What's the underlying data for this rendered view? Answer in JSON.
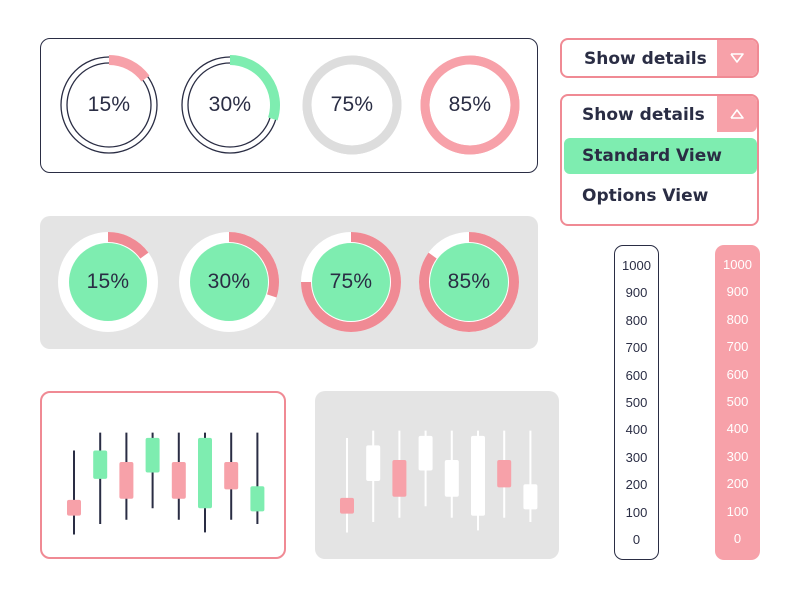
{
  "progress_rings_outline": {
    "items": [
      {
        "label": "15%",
        "value": 0.15,
        "track_color": "#2a2d44",
        "fill_color": "#f7a1a9",
        "style": "double-line"
      },
      {
        "label": "30%",
        "value": 0.3,
        "track_color": "#2a2d44",
        "fill_color": "#7eedb0",
        "style": "double-line"
      },
      {
        "label": "75%",
        "value": 0.75,
        "track_color": "#dddddd",
        "fill_color": "#dddddd",
        "style": "solid"
      },
      {
        "label": "85%",
        "value": 0.85,
        "track_color": "#f7a1a9",
        "fill_color": "#f7a1a9",
        "style": "solid"
      }
    ]
  },
  "progress_rings_filled": {
    "items": [
      {
        "label": "15%",
        "value": 0.15,
        "center_color": "#7eedb0",
        "track_color": "#ffffff",
        "fill_color": "#f08a94"
      },
      {
        "label": "30%",
        "value": 0.3,
        "center_color": "#7eedb0",
        "track_color": "#ffffff",
        "fill_color": "#f08a94"
      },
      {
        "label": "75%",
        "value": 0.75,
        "center_color": "#7eedb0",
        "track_color": "#ffffff",
        "fill_color": "#f08a94"
      },
      {
        "label": "85%",
        "value": 0.85,
        "center_color": "#7eedb0",
        "track_color": "#ffffff",
        "fill_color": "#f08a94"
      }
    ]
  },
  "dropdown_collapsed": {
    "label": "Show details",
    "icon": "chevron-down-icon"
  },
  "dropdown_expanded": {
    "label": "Show details",
    "icon": "chevron-up-icon",
    "options": [
      {
        "label": "Standard View",
        "selected": true
      },
      {
        "label": "Options View",
        "selected": false
      }
    ]
  },
  "candlestick_colored": {
    "line_color": "#2a2d44",
    "candles": [
      {
        "open": 28,
        "close": 43,
        "low": 10,
        "high": 90,
        "color": "#f7a1a9"
      },
      {
        "open": 63,
        "close": 90,
        "low": 20,
        "high": 107,
        "color": "#7eedb0"
      },
      {
        "open": 79,
        "close": 44,
        "low": 24,
        "high": 107,
        "color": "#f7a1a9"
      },
      {
        "open": 69,
        "close": 102,
        "low": 35,
        "high": 107,
        "color": "#7eedb0"
      },
      {
        "open": 79,
        "close": 44,
        "low": 24,
        "high": 107,
        "color": "#f7a1a9"
      },
      {
        "open": 35,
        "close": 102,
        "low": 12,
        "high": 107,
        "color": "#7eedb0"
      },
      {
        "open": 79,
        "close": 53,
        "low": 24,
        "high": 107,
        "color": "#f7a1a9"
      },
      {
        "open": 32,
        "close": 56,
        "low": 20,
        "high": 107,
        "color": "#7eedb0"
      }
    ]
  },
  "candlestick_mono": {
    "line_color": "#ffffff",
    "candles": [
      {
        "open": 43,
        "close": 28,
        "low": 10,
        "high": 100,
        "color": "#f7a1a9"
      },
      {
        "open": 59,
        "close": 93,
        "low": 20,
        "high": 107,
        "color": "#ffffff"
      },
      {
        "open": 79,
        "close": 44,
        "low": 24,
        "high": 107,
        "color": "#f7a1a9"
      },
      {
        "open": 69,
        "close": 102,
        "low": 35,
        "high": 107,
        "color": "#ffffff"
      },
      {
        "open": 79,
        "close": 44,
        "low": 24,
        "high": 107,
        "color": "#ffffff"
      },
      {
        "open": 26,
        "close": 102,
        "low": 12,
        "high": 107,
        "color": "#ffffff"
      },
      {
        "open": 79,
        "close": 53,
        "low": 24,
        "high": 107,
        "color": "#f7a1a9"
      },
      {
        "open": 32,
        "close": 56,
        "low": 20,
        "high": 107,
        "color": "#ffffff"
      }
    ]
  },
  "scale_outline": {
    "ticks": [
      "1000",
      "900",
      "800",
      "700",
      "600",
      "500",
      "400",
      "300",
      "200",
      "100",
      "0"
    ]
  },
  "scale_pink": {
    "ticks": [
      "1000",
      "900",
      "800",
      "700",
      "600",
      "500",
      "400",
      "300",
      "200",
      "100",
      "0"
    ]
  }
}
